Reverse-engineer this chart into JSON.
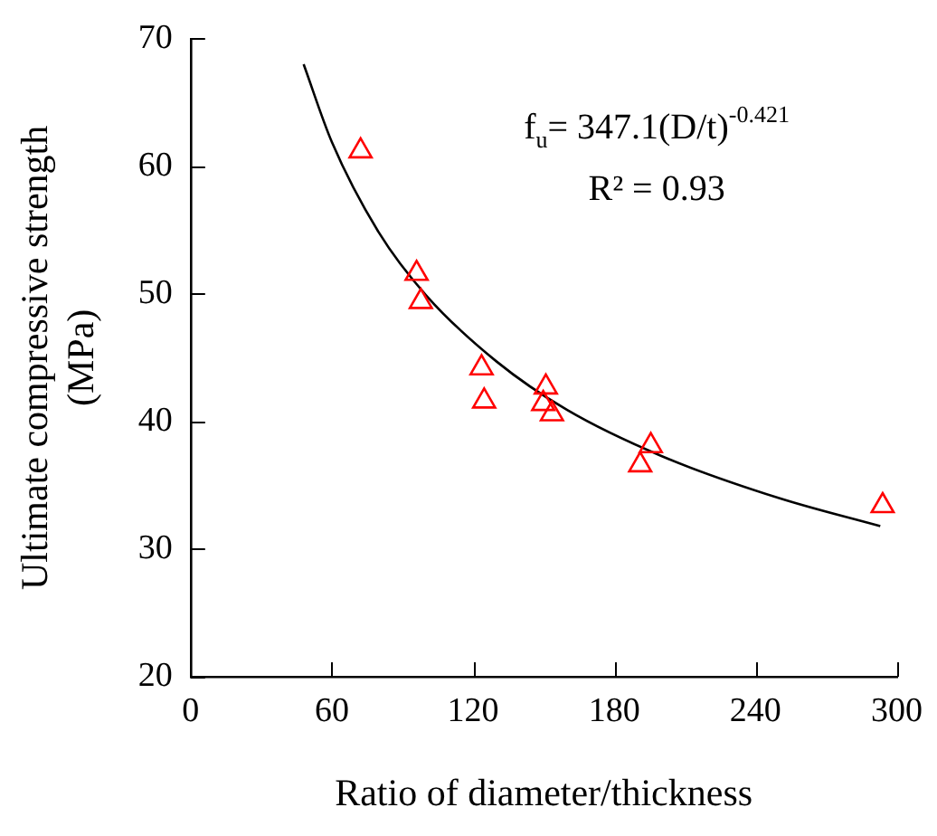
{
  "chart_data": {
    "type": "scatter",
    "xlabel": "Ratio of diameter/thickness",
    "ylabel": "Ultimate compressive strength\n(MPa)",
    "xlim": [
      0,
      300
    ],
    "xticks": [
      0,
      60,
      120,
      180,
      240,
      300
    ],
    "ylim": [
      20,
      70
    ],
    "yticks": [
      20,
      30,
      40,
      50,
      60,
      70
    ],
    "grid": false,
    "legend": false,
    "marker": "triangle",
    "annotations": [
      "f$_{u}$= 347.1(D/t)$^{-0.421}$",
      "R² = 0.93"
    ],
    "series": [
      {
        "color": "#ff0000",
        "x": [
          72.2,
          96,
          97.8,
          123.6,
          124.7,
          150.9,
          149.8,
          153.5,
          195.5,
          191,
          294
        ],
        "values": [
          61.2,
          51.6,
          49.4,
          44.2,
          41.6,
          42.7,
          41.4,
          40.6,
          38.1,
          36.6,
          33.4
        ]
      },
      {
        "type": "line",
        "color": "#000000",
        "marker": "none",
        "x": [
          48,
          60,
          80,
          100,
          130,
          160,
          200,
          250,
          293
        ],
        "values": [
          68.0,
          61.9,
          54.8,
          49.9,
          44.7,
          40.9,
          37.3,
          34.0,
          31.8
        ]
      }
    ]
  }
}
